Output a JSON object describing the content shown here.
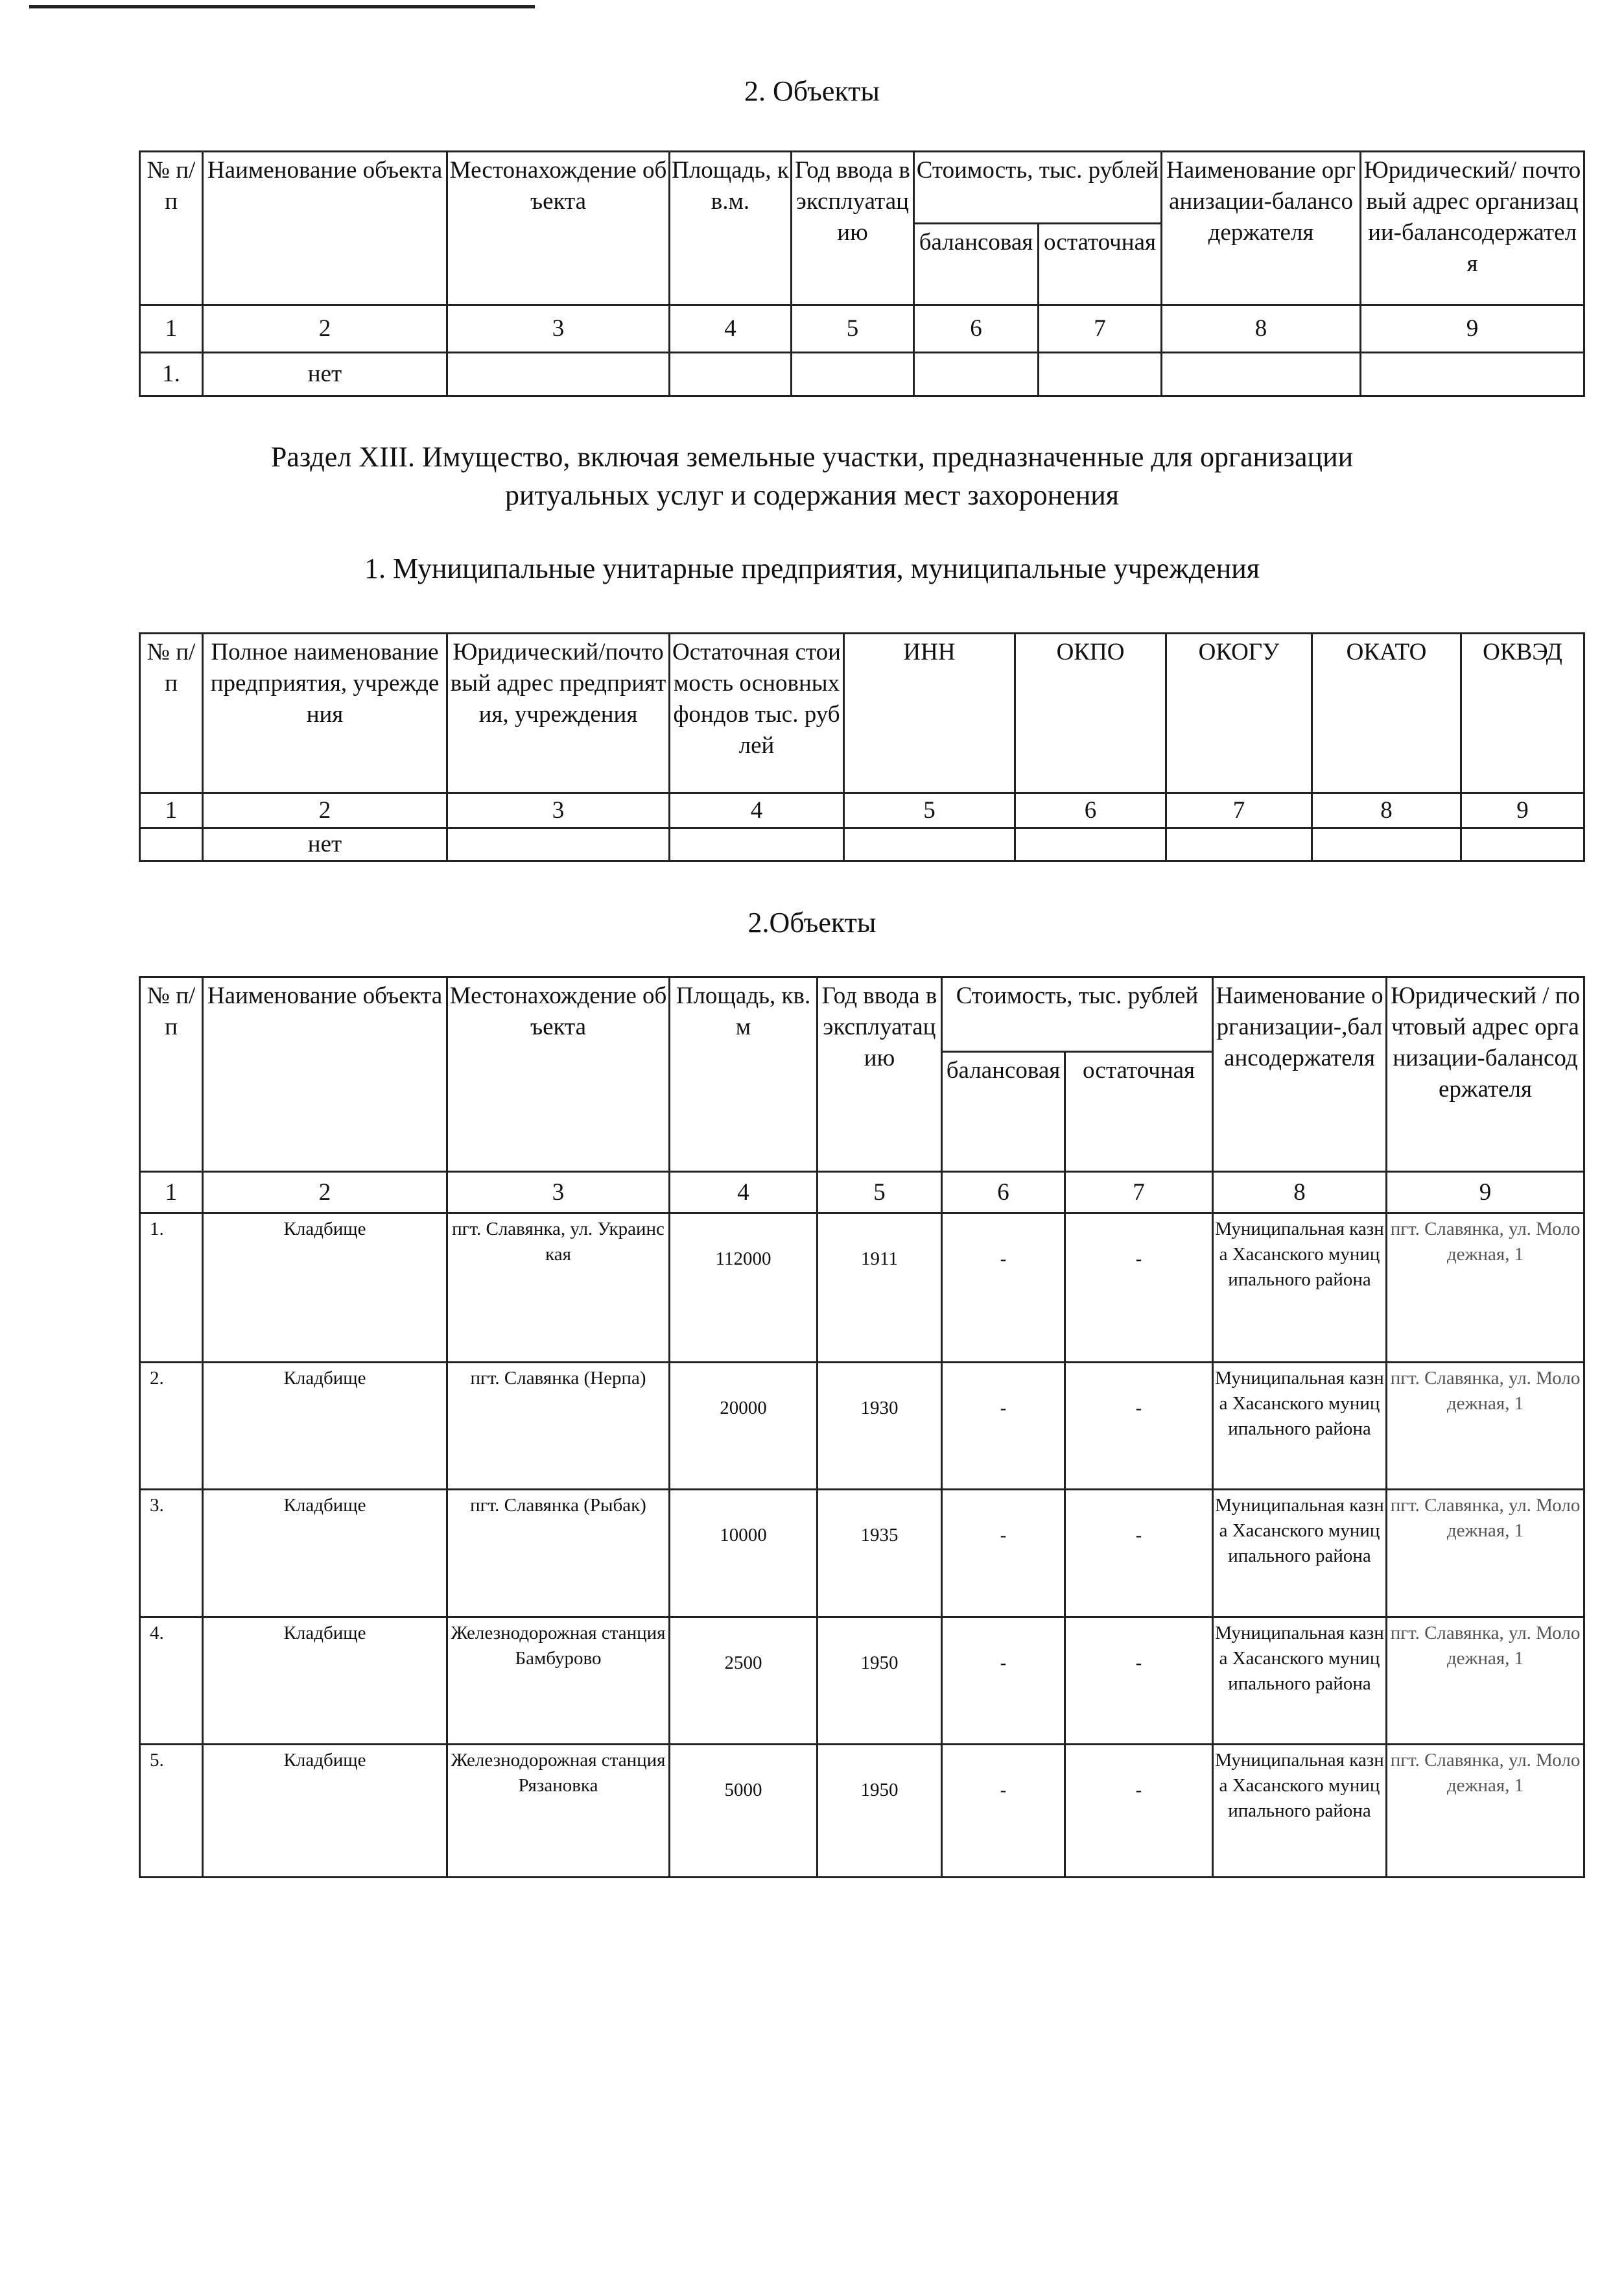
{
  "section1_objects": {
    "title": "2.  Объекты",
    "headers": [
      "№ п/п",
      "Наименование объекта",
      "Местонахождение объекта",
      "Площадь, кв.м.",
      "Год ввода в эксплуатацию",
      "Стоимость, тыс. рублей",
      "балансовая",
      "остаточная",
      "Наименование организации-балансодержателя",
      "Юридический/ почтовый адрес организации-балансодержателя"
    ],
    "numbers": [
      "1",
      "2",
      "3",
      "4",
      "5",
      "6",
      "7",
      "8",
      "9"
    ],
    "row": {
      "no": "1.",
      "name": "нет"
    }
  },
  "section13": {
    "title_line1": "Раздел XIII. Имущество, включая земельные участки, предназначенные для организации",
    "title_line2": "ритуальных услуг и содержания мест захоронения",
    "subtitle": "1. Муниципальные унитарные предприятия, муниципальные учреждения",
    "enterprises": {
      "headers": [
        "№ п/п",
        "Полное наименование предприятия, учреждения",
        "Юридический/почтовый адрес предприятия, учреждения",
        "Остаточная стоимость основных фондов тыс. рублей",
        "ИНН",
        "ОКПО",
        "ОКОГУ",
        "ОКАТО",
        "ОКВЭД"
      ],
      "numbers": [
        "1",
        "2",
        "3",
        "4",
        "5",
        "6",
        "7",
        "8",
        "9"
      ],
      "row": {
        "name": "нет"
      }
    },
    "objects": {
      "title": "2.Объекты",
      "headers": [
        "№ п/п",
        "Наименование объекта",
        "Местонахождение объекта",
        "Площадь, кв. м",
        "Год ввода в эксплуатацию",
        "Стоимость, тыс. рублей",
        "балансовая",
        "остаточная",
        "Наименование организации-,балансодержателя",
        "Юридический / почтовый адрес организации-балансодержателя"
      ],
      "numbers": [
        "1",
        "2",
        "3",
        "4",
        "5",
        "6",
        "7",
        "8",
        "9"
      ],
      "rows": [
        {
          "no": "1.",
          "name": "Кладбище",
          "location": "пгт. Славянка, ул. Украинская",
          "area": "112000",
          "year": "1911",
          "balance": "-",
          "residual": "-",
          "holder": "Муниципальная казна Хасанского муниципального района",
          "address": "пгт. Славянка, ул. Молодежная, 1"
        },
        {
          "no": "2.",
          "name": "Кладбище",
          "location": "пгт. Славянка (Нерпа)",
          "area": "20000",
          "year": "1930",
          "balance": "-",
          "residual": "-",
          "holder": "Муниципальная казна Хасанского муниципального района",
          "address": "пгт. Славянка, ул. Молодежная, 1"
        },
        {
          "no": "3.",
          "name": "Кладбище",
          "location": "пгт. Славянка (Рыбак)",
          "area": "10000",
          "year": "1935",
          "balance": "-",
          "residual": "-",
          "holder": "Муниципальная казна Хасанского муниципального района",
          "address": "пгт. Славянка, ул. Молодежная, 1"
        },
        {
          "no": "4.",
          "name": "Кладбище",
          "location": "Железнодорожная станция Бамбурово",
          "area": "2500",
          "year": "1950",
          "balance": "-",
          "residual": "-",
          "holder": "Муниципальная казна Хасанского муниципального района",
          "address": "пгт. Славянка, ул. Молодежная, 1"
        },
        {
          "no": "5.",
          "name": "Кладбище",
          "location": "Железнодорожная станция Рязановка",
          "area": "5000",
          "year": "1950",
          "balance": "-",
          "residual": "-",
          "holder": "Муниципальная казна Хасанского муниципального района",
          "address": "пгт. Славянка, ул. Молодежная, 1"
        }
      ]
    }
  }
}
